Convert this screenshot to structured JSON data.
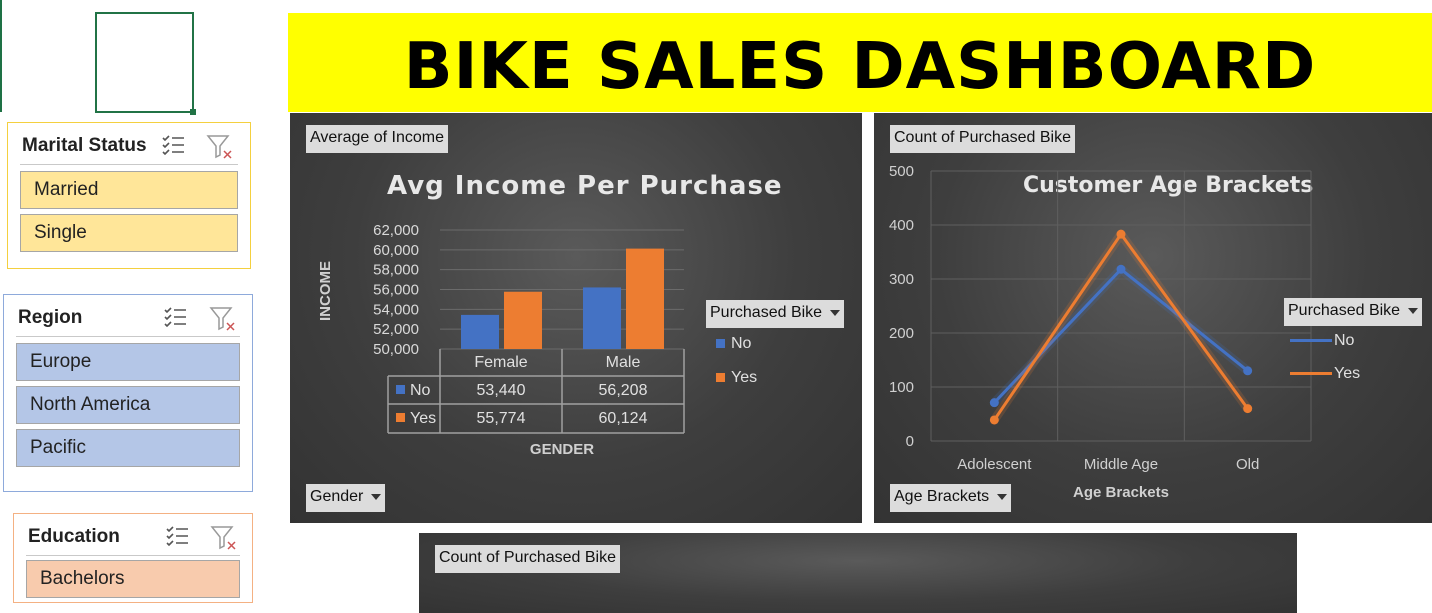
{
  "dashboard": {
    "title": "BIKE SALES DASHBOARD"
  },
  "slicers": {
    "marital": {
      "title": "Marital Status",
      "items": [
        "Married",
        "Single"
      ],
      "color": "#ffe699"
    },
    "region": {
      "title": "Region",
      "items": [
        "Europe",
        "North America",
        "Pacific"
      ],
      "color": "#b4c6e7"
    },
    "education": {
      "title": "Education",
      "items": [
        "Bachelors"
      ],
      "color": "#f8cbad"
    }
  },
  "income_chart": {
    "value_button": "Average of Income",
    "axis_button": "Gender",
    "legend_button": "Purchased Bike",
    "legend_items": [
      "No",
      "Yes"
    ],
    "table_headers": [
      "Female",
      "Male"
    ],
    "table_rows": [
      {
        "label": "No",
        "values": [
          "53,440",
          "56,208"
        ]
      },
      {
        "label": "Yes",
        "values": [
          "55,774",
          "60,124"
        ]
      }
    ]
  },
  "age_chart": {
    "value_button": "Count of Purchased Bike",
    "axis_button": "Age Brackets",
    "legend_button": "Purchased Bike",
    "legend_items": [
      "No",
      "Yes"
    ]
  },
  "bottom_chart": {
    "value_button": "Count of Purchased Bike"
  },
  "colors": {
    "no": "#4472c4",
    "yes": "#ed7d31",
    "banner": "#ffff00"
  },
  "chart_data": [
    {
      "type": "bar",
      "title": "Avg Income Per Purchase",
      "xlabel": "GENDER",
      "ylabel": "INCOME",
      "categories": [
        "Female",
        "Male"
      ],
      "series": [
        {
          "name": "No",
          "values": [
            53440,
            56208
          ]
        },
        {
          "name": "Yes",
          "values": [
            55774,
            60124
          ]
        }
      ],
      "ylim": [
        50000,
        62000
      ],
      "yticks": [
        "62,000",
        "60,000",
        "58,000",
        "56,000",
        "54,000",
        "52,000",
        "50,000"
      ],
      "grid": true,
      "legend": "right"
    },
    {
      "type": "line",
      "title": "Customer Age Brackets",
      "xlabel": "Age Brackets",
      "ylabel": "",
      "categories": [
        "Adolescent",
        "Middle Age",
        "Old"
      ],
      "series": [
        {
          "name": "No",
          "values": [
            71,
            318,
            130
          ]
        },
        {
          "name": "Yes",
          "values": [
            39,
            383,
            60
          ]
        }
      ],
      "ylim": [
        0,
        500
      ],
      "yticks": [
        "500",
        "400",
        "300",
        "200",
        "100",
        "0"
      ],
      "grid": true,
      "legend": "right"
    }
  ]
}
